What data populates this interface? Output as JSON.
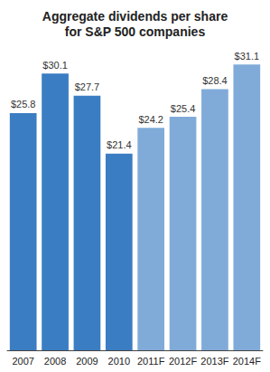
{
  "chart_data": {
    "type": "bar",
    "title": "Aggregate dividends per share\nfor S&P 500 companies",
    "categories": [
      "2007",
      "2008",
      "2009",
      "2010",
      "2011F",
      "2012F",
      "2013F",
      "2014F"
    ],
    "values": [
      25.8,
      30.1,
      27.7,
      21.4,
      24.2,
      25.4,
      28.4,
      31.1
    ],
    "value_labels": [
      "$25.8",
      "$30.1",
      "$27.7",
      "$21.4",
      "$24.2",
      "$25.4",
      "$28.4",
      "$31.1"
    ],
    "colors": [
      "#3a7dc2",
      "#3a7dc2",
      "#3a7dc2",
      "#3a7dc2",
      "#80abd9",
      "#80abd9",
      "#80abd9",
      "#80abd9"
    ],
    "ylim": [
      0,
      32
    ],
    "data_labels": true,
    "grid": false,
    "tick_labels": "x"
  }
}
